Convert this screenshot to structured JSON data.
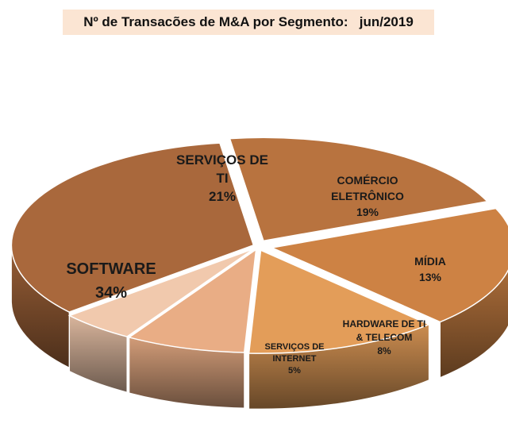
{
  "chart_data": {
    "type": "pie",
    "title": "Nº de Transacões de M&A por Segmento:   jun/2019",
    "slices": [
      {
        "label_lines": [
          "SERVIÇOS DE",
          "TI"
        ],
        "value": 21,
        "value_label": "21%",
        "color": "#b8733f"
      },
      {
        "label_lines": [
          "COMÉRCIO",
          "ELETRÔNICO"
        ],
        "value": 19,
        "value_label": "19%",
        "color": "#cd8244"
      },
      {
        "label_lines": [
          "MÍDIA"
        ],
        "value": 13,
        "value_label": "13%",
        "color": "#e39d59"
      },
      {
        "label_lines": [
          "HARDWARE  DE TI",
          "& TELECOM"
        ],
        "value": 8,
        "value_label": "8%",
        "color": "#e9ad85"
      },
      {
        "label_lines": [
          "SERVIÇOS DE",
          "INTERNET"
        ],
        "value": 5,
        "value_label": "5%",
        "color": "#f1c9ad"
      },
      {
        "label_lines": [
          "SOFTWARE"
        ],
        "value": 34,
        "value_label": "34%",
        "color": "#a9683c"
      }
    ]
  }
}
